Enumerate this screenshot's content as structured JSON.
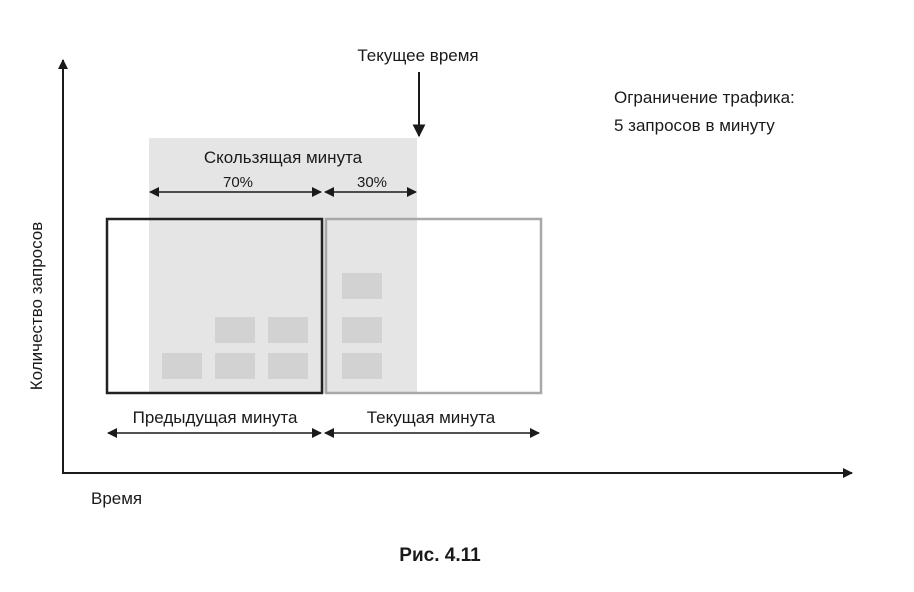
{
  "diagram": {
    "current_time_label": "Текущее время",
    "rate_limit_line1": "Ограничение трафика:",
    "rate_limit_line2": "5 запросов в минуту",
    "sliding_window_label": "Скользящая минута",
    "percent_previous": "70%",
    "percent_current": "30%",
    "previous_minute_label": "Предыдущая минута",
    "current_minute_label": "Текущая минута",
    "y_axis_label": "Количество запросов",
    "x_axis_label": "Время",
    "previous_minute_requests": 5,
    "current_minute_requests": 3,
    "colors": {
      "sliding_window": "#e5e5e5",
      "request_block": "#d2d2d2",
      "previous_frame": "#222222",
      "current_frame": "#a8a8a8"
    }
  },
  "caption": "Рис. 4.11"
}
